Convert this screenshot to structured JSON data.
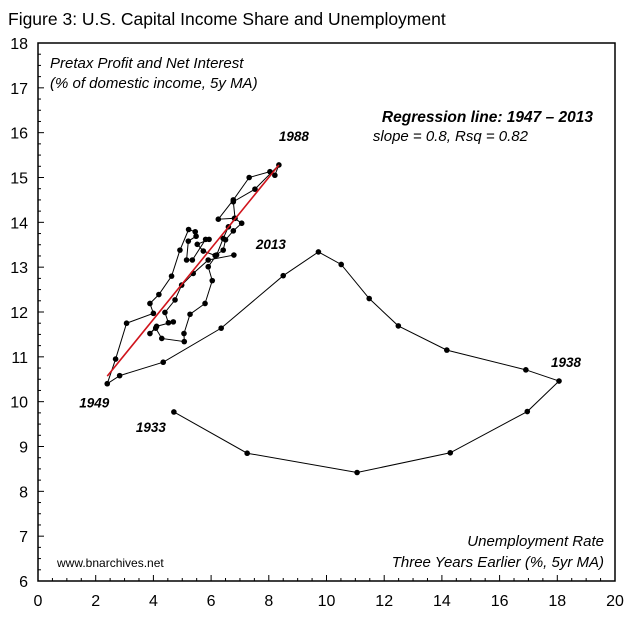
{
  "chart_data": {
    "type": "line",
    "title": "Figure 3: U.S. Capital Income Share and Unemployment",
    "ylabel_lines": [
      "Pretax Profit and Net Interest",
      "(% of domestic income, 5y MA)"
    ],
    "xlabel_lines": [
      "Unemployment Rate",
      "Three Years Earlier (%, 5yr MA)"
    ],
    "xlim": [
      0,
      20
    ],
    "ylim": [
      6,
      18
    ],
    "x_ticks": [
      0,
      2,
      4,
      6,
      8,
      10,
      12,
      14,
      16,
      18,
      20
    ],
    "y_ticks": [
      6,
      7,
      8,
      9,
      10,
      11,
      12,
      13,
      14,
      15,
      16,
      17,
      18
    ],
    "grid": false,
    "regression": {
      "title": "Regression line: 1947 – 2013",
      "stats": "slope = 0.8, Rsq = 0.82",
      "color": "#d0141c",
      "from": [
        2.4,
        10.57
      ],
      "to": [
        8.35,
        15.28
      ]
    },
    "annotations": [
      {
        "text": "1988",
        "at": [
          8.35,
          15.28
        ]
      },
      {
        "text": "2013",
        "at": [
          6.79,
          13.27
        ]
      },
      {
        "text": "1938",
        "at": [
          18.06,
          10.46
        ]
      },
      {
        "text": "1949",
        "at": [
          2.4,
          10.4
        ]
      },
      {
        "text": "1933",
        "at": [
          4.71,
          9.77
        ]
      }
    ],
    "source": "www.bnarchives.net",
    "series": [
      {
        "name": "Capital income share vs lagged unemployment",
        "color": "#000000",
        "points": [
          [
            4.71,
            9.77
          ],
          [
            7.25,
            8.85
          ],
          [
            11.06,
            8.42
          ],
          [
            14.29,
            8.86
          ],
          [
            16.96,
            9.78
          ],
          [
            18.06,
            10.46
          ],
          [
            16.91,
            10.71
          ],
          [
            14.17,
            11.15
          ],
          [
            12.49,
            11.69
          ],
          [
            11.48,
            12.3
          ],
          [
            10.51,
            13.06
          ],
          [
            9.72,
            13.34
          ],
          [
            8.5,
            12.81
          ],
          [
            6.35,
            11.64
          ],
          [
            4.34,
            10.88
          ],
          [
            2.83,
            10.58
          ],
          [
            2.4,
            10.4
          ],
          [
            2.69,
            10.95
          ],
          [
            3.07,
            11.75
          ],
          [
            4.0,
            11.97
          ],
          [
            3.88,
            12.19
          ],
          [
            4.19,
            12.39
          ],
          [
            4.63,
            12.8
          ],
          [
            4.92,
            13.38
          ],
          [
            5.22,
            13.84
          ],
          [
            5.45,
            13.79
          ],
          [
            5.48,
            13.69
          ],
          [
            5.21,
            13.58
          ],
          [
            5.15,
            13.16
          ],
          [
            5.35,
            13.16
          ],
          [
            5.81,
            13.62
          ],
          [
            5.93,
            13.62
          ],
          [
            5.52,
            13.51
          ],
          [
            5.73,
            13.36
          ],
          [
            6.14,
            13.26
          ],
          [
            6.42,
            13.38
          ],
          [
            6.5,
            13.61
          ],
          [
            6.77,
            13.81
          ],
          [
            7.06,
            13.98
          ],
          [
            6.81,
            14.09
          ],
          [
            6.25,
            14.07
          ],
          [
            6.77,
            14.5
          ],
          [
            7.32,
            15.0
          ],
          [
            8.04,
            15.13
          ],
          [
            8.21,
            15.05
          ],
          [
            8.35,
            15.28
          ],
          [
            7.52,
            14.74
          ],
          [
            6.77,
            14.46
          ],
          [
            6.83,
            14.09
          ],
          [
            6.6,
            13.9
          ],
          [
            6.42,
            13.64
          ],
          [
            6.19,
            13.27
          ],
          [
            5.9,
            13.01
          ],
          [
            6.04,
            12.7
          ],
          [
            5.79,
            12.19
          ],
          [
            5.27,
            11.95
          ],
          [
            5.06,
            11.52
          ],
          [
            5.07,
            11.34
          ],
          [
            4.29,
            11.41
          ],
          [
            4.08,
            11.64
          ],
          [
            3.88,
            11.52
          ],
          [
            4.11,
            11.68
          ],
          [
            4.69,
            11.78
          ],
          [
            4.52,
            11.76
          ],
          [
            4.4,
            11.99
          ],
          [
            4.75,
            12.27
          ],
          [
            4.98,
            12.6
          ],
          [
            5.38,
            12.86
          ],
          [
            5.9,
            13.16
          ],
          [
            6.79,
            13.27
          ]
        ]
      }
    ]
  }
}
